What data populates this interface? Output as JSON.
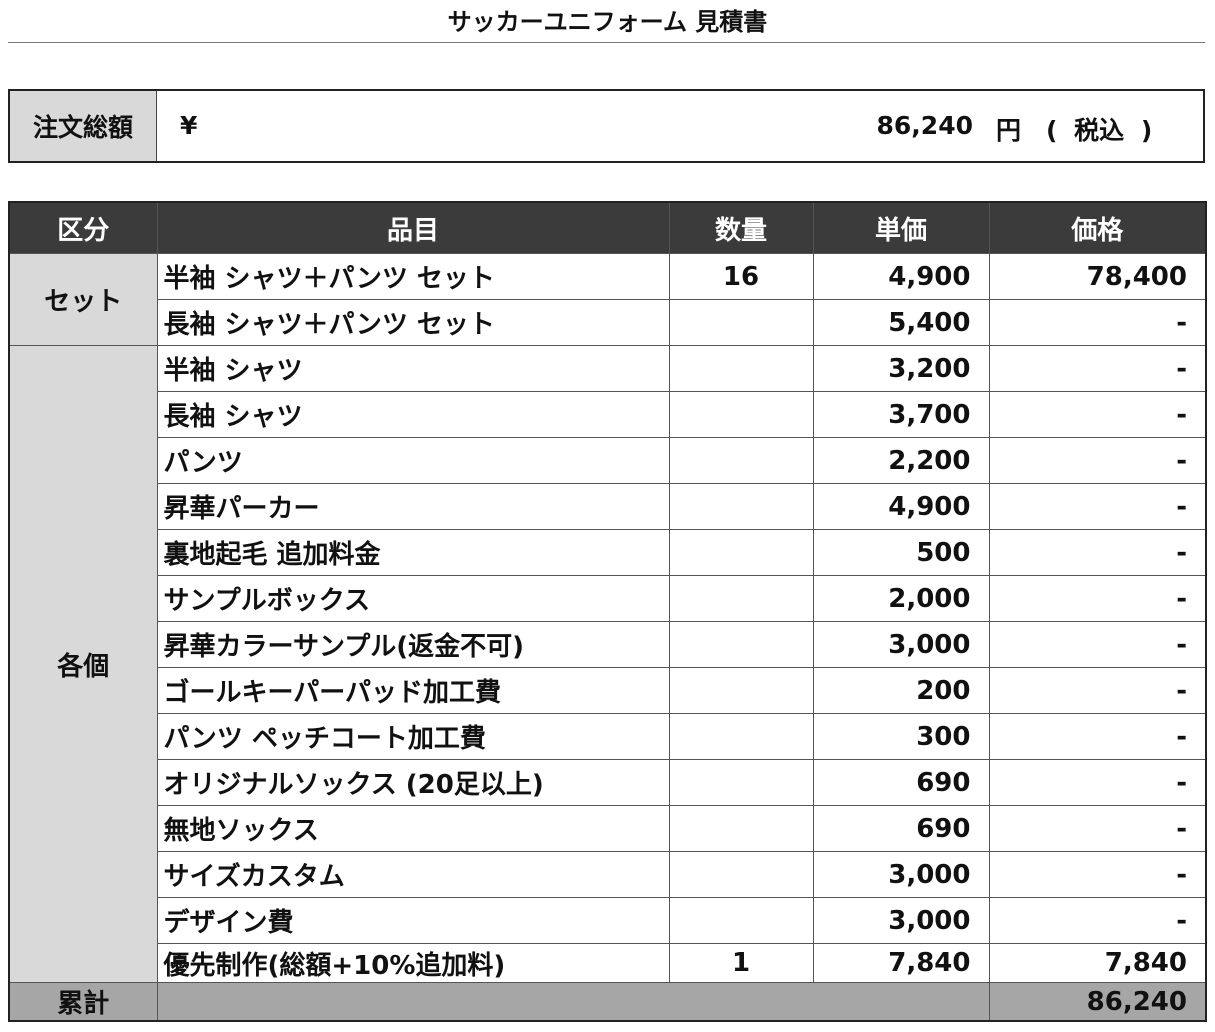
{
  "header": {
    "title": "サッカーユニフォーム 見積書"
  },
  "summary": {
    "label": "注文総額",
    "currency": "¥",
    "amount": "86,240",
    "unit": "円",
    "tax": "( 税込 )"
  },
  "table": {
    "columns": [
      "区分",
      "品目",
      "数量",
      "単価",
      "価格"
    ],
    "groups": [
      {
        "label": "セット",
        "rows": [
          [
            "半袖 シャツ＋パンツ セット",
            16,
            "4,900",
            "78,400"
          ],
          [
            "長袖 シャツ＋パンツ セット",
            null,
            "5,400",
            "-"
          ]
        ]
      },
      {
        "label": "各個",
        "rows": [
          [
            "半袖 シャツ",
            null,
            "3,200",
            "-"
          ],
          [
            "長袖 シャツ",
            null,
            "3,700",
            "-"
          ],
          [
            "パンツ",
            null,
            "2,200",
            "-"
          ],
          [
            "昇華パーカー",
            null,
            "4,900",
            "-"
          ],
          [
            "裏地起毛 追加料金",
            null,
            "500",
            "-"
          ],
          [
            "サンプルボックス",
            null,
            "2,000",
            "-"
          ],
          [
            "昇華カラーサンプル(返金不可)",
            null,
            "3,000",
            "-"
          ],
          [
            "ゴールキーパーパッド加工費",
            null,
            "200",
            "-"
          ],
          [
            "パンツ ペッチコート加工費",
            null,
            "300",
            "-"
          ],
          [
            "オリジナルソックス (20足以上)",
            null,
            "690",
            "-"
          ],
          [
            "無地ソックス",
            null,
            "690",
            "-"
          ],
          [
            "サイズカスタム",
            null,
            "3,000",
            "-"
          ],
          [
            "デザイン費",
            null,
            "3,000",
            "-"
          ],
          [
            "優先制作(総額+10%追加料)",
            1,
            "7,840",
            "7,840"
          ]
        ]
      }
    ],
    "total": {
      "label": "累計",
      "value": "86,240"
    }
  }
}
